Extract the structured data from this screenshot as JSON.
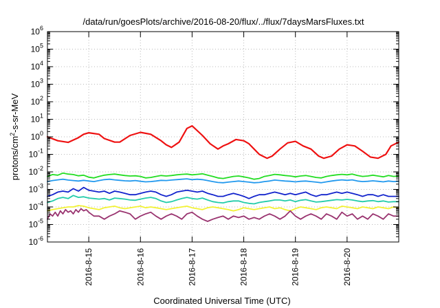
{
  "chart_data": {
    "type": "line",
    "title": "/data/run/goesPlots/archive/2016-08-20/flux/../flux/7daysMarsFluxes.txt",
    "xlabel": "Coordinated Universal Time (UTC)",
    "ylabel": {
      "base": "protons/cm",
      "sup": "2",
      "rest": "-s-sr-MeV"
    },
    "x_domain_days": [
      14.2,
      21.0
    ],
    "x_ticks": [
      {
        "day": 15,
        "label": "2016-8-15"
      },
      {
        "day": 16,
        "label": "2016-8-16"
      },
      {
        "day": 17,
        "label": "2016-8-17"
      },
      {
        "day": 18,
        "label": "2016-8-18"
      },
      {
        "day": 19,
        "label": "2016-8-19"
      },
      {
        "day": 20,
        "label": "2016-8-20"
      }
    ],
    "y_scale": "log",
    "ylim": [
      1e-06,
      1000000.0
    ],
    "y_ticks": [
      {
        "exp": -6,
        "base": "10",
        "sup": "-6"
      },
      {
        "exp": -5,
        "base": "10",
        "sup": "-5"
      },
      {
        "exp": -4,
        "base": "10",
        "sup": "-4"
      },
      {
        "exp": -3,
        "base": "10",
        "sup": "-3"
      },
      {
        "exp": -2,
        "base": "10",
        "sup": "-2"
      },
      {
        "exp": -1,
        "base": "10",
        "sup": "-1"
      },
      {
        "exp": 0,
        "base": "10",
        "sup": "0"
      },
      {
        "exp": 1,
        "base": "10",
        "sup": "1"
      },
      {
        "exp": 2,
        "base": "10",
        "sup": "2"
      },
      {
        "exp": 3,
        "base": "10",
        "sup": "3"
      },
      {
        "exp": 4,
        "base": "10",
        "sup": "4"
      },
      {
        "exp": 5,
        "base": "10",
        "sup": "5"
      },
      {
        "exp": 6,
        "base": "10",
        "sup": "6"
      }
    ],
    "grid": true,
    "series": [
      {
        "color": "#ee1111",
        "width": 2.2,
        "x": [
          14.2,
          14.4,
          14.6,
          14.8,
          14.9,
          15.0,
          15.2,
          15.3,
          15.5,
          15.6,
          15.8,
          16.0,
          16.2,
          16.4,
          16.5,
          16.6,
          16.75,
          16.9,
          17.0,
          17.2,
          17.35,
          17.5,
          17.6,
          17.7,
          17.85,
          18.0,
          18.1,
          18.2,
          18.3,
          18.45,
          18.55,
          18.7,
          18.85,
          19.0,
          19.15,
          19.3,
          19.45,
          19.55,
          19.7,
          19.85,
          20.0,
          20.15,
          20.3,
          20.45,
          20.6,
          20.75,
          20.85,
          21.0
        ],
        "y": [
          1.0,
          0.6,
          0.48,
          0.9,
          1.4,
          1.7,
          1.4,
          0.8,
          0.5,
          0.5,
          1.2,
          1.8,
          1.4,
          0.6,
          0.35,
          0.25,
          0.5,
          3.0,
          4.2,
          1.2,
          0.4,
          0.2,
          0.3,
          0.4,
          0.7,
          0.6,
          0.4,
          0.2,
          0.1,
          0.06,
          0.08,
          0.2,
          0.45,
          0.55,
          0.3,
          0.2,
          0.08,
          0.06,
          0.08,
          0.2,
          0.35,
          0.3,
          0.15,
          0.07,
          0.06,
          0.1,
          0.3,
          0.5
        ]
      },
      {
        "color": "#22dd22",
        "width": 1.8,
        "x": [
          14.2,
          14.3,
          14.4,
          14.5,
          14.6,
          14.7,
          14.8,
          14.9,
          15.0,
          15.1,
          15.2,
          15.3,
          15.4,
          15.5,
          15.6,
          15.7,
          15.8,
          15.9,
          16.0,
          16.1,
          16.2,
          16.3,
          16.4,
          16.5,
          16.6,
          16.7,
          16.8,
          16.9,
          17.0,
          17.1,
          17.2,
          17.3,
          17.4,
          17.5,
          17.6,
          17.7,
          17.8,
          17.9,
          18.0,
          18.1,
          18.2,
          18.3,
          18.4,
          18.5,
          18.6,
          18.7,
          18.8,
          18.9,
          19.0,
          19.1,
          19.2,
          19.3,
          19.4,
          19.5,
          19.6,
          19.7,
          19.8,
          19.9,
          20.0,
          20.1,
          20.2,
          20.3,
          20.4,
          20.5,
          20.6,
          20.7,
          20.8,
          20.9,
          21.0
        ],
        "y": [
          0.0055,
          0.007,
          0.0065,
          0.0085,
          0.0075,
          0.007,
          0.006,
          0.0065,
          0.005,
          0.0045,
          0.0055,
          0.0065,
          0.007,
          0.0075,
          0.0068,
          0.0062,
          0.0058,
          0.006,
          0.0055,
          0.0045,
          0.0048,
          0.0055,
          0.0062,
          0.0058,
          0.0062,
          0.0068,
          0.0072,
          0.0075,
          0.0068,
          0.0072,
          0.0078,
          0.0065,
          0.0055,
          0.0045,
          0.0042,
          0.0048,
          0.0055,
          0.0058,
          0.0052,
          0.0045,
          0.0038,
          0.0042,
          0.0055,
          0.0062,
          0.0072,
          0.0068,
          0.0062,
          0.0058,
          0.0052,
          0.0058,
          0.0062,
          0.0055,
          0.0048,
          0.0045,
          0.0055,
          0.0062,
          0.0068,
          0.0072,
          0.0068,
          0.0075,
          0.0062,
          0.0055,
          0.0058,
          0.0065,
          0.0058,
          0.0052,
          0.0062,
          0.0055,
          0.0058
        ]
      },
      {
        "color": "#2299ee",
        "width": 1.8,
        "x": [
          14.2,
          14.3,
          14.4,
          14.5,
          14.6,
          14.7,
          14.8,
          14.9,
          15.0,
          15.1,
          15.2,
          15.3,
          15.4,
          15.5,
          15.6,
          15.7,
          15.8,
          15.9,
          16.0,
          16.1,
          16.2,
          16.3,
          16.4,
          16.5,
          16.6,
          16.7,
          16.8,
          16.9,
          17.0,
          17.1,
          17.2,
          17.3,
          17.4,
          17.5,
          17.6,
          17.7,
          17.8,
          17.9,
          18.0,
          18.1,
          18.2,
          18.3,
          18.4,
          18.5,
          18.6,
          18.7,
          18.8,
          18.9,
          19.0,
          19.1,
          19.2,
          19.3,
          19.4,
          19.5,
          19.6,
          19.7,
          19.8,
          19.9,
          20.0,
          20.1,
          20.2,
          20.3,
          20.4,
          20.5,
          20.6,
          20.7,
          20.8,
          20.9,
          21.0
        ],
        "y": [
          0.0028,
          0.0032,
          0.0035,
          0.0038,
          0.0034,
          0.0032,
          0.003,
          0.0033,
          0.003,
          0.0028,
          0.0032,
          0.0036,
          0.0038,
          0.0035,
          0.0033,
          0.0031,
          0.003,
          0.0032,
          0.0029,
          0.0027,
          0.0028,
          0.003,
          0.0033,
          0.0032,
          0.0034,
          0.0036,
          0.0038,
          0.004,
          0.0036,
          0.0038,
          0.0036,
          0.0032,
          0.0028,
          0.0025,
          0.0024,
          0.0026,
          0.0028,
          0.003,
          0.0028,
          0.0026,
          0.0024,
          0.0025,
          0.0028,
          0.003,
          0.0034,
          0.0032,
          0.003,
          0.0029,
          0.0027,
          0.0029,
          0.003,
          0.0028,
          0.0026,
          0.0024,
          0.0027,
          0.003,
          0.0033,
          0.0035,
          0.0033,
          0.0035,
          0.003,
          0.0028,
          0.0029,
          0.0031,
          0.0029,
          0.0027,
          0.003,
          0.0028,
          0.0029
        ]
      },
      {
        "color": "#1122cc",
        "width": 1.8,
        "x": [
          14.2,
          14.3,
          14.4,
          14.5,
          14.6,
          14.7,
          14.8,
          14.9,
          15.0,
          15.1,
          15.2,
          15.3,
          15.4,
          15.5,
          15.6,
          15.7,
          15.8,
          15.9,
          16.0,
          16.1,
          16.2,
          16.3,
          16.4,
          16.5,
          16.6,
          16.7,
          16.8,
          16.9,
          17.0,
          17.1,
          17.2,
          17.3,
          17.4,
          17.5,
          17.6,
          17.7,
          17.8,
          17.9,
          18.0,
          18.1,
          18.2,
          18.3,
          18.4,
          18.5,
          18.6,
          18.7,
          18.8,
          18.9,
          19.0,
          19.1,
          19.2,
          19.3,
          19.4,
          19.5,
          19.6,
          19.7,
          19.8,
          19.9,
          20.0,
          20.1,
          20.2,
          20.3,
          20.4,
          20.5,
          20.6,
          20.7,
          20.8,
          20.9,
          21.0
        ],
        "y": [
          0.0004,
          0.0005,
          0.0007,
          0.0008,
          0.0007,
          0.0011,
          0.0008,
          0.0013,
          0.0009,
          0.0008,
          0.0007,
          0.0008,
          0.0006,
          0.0008,
          0.0007,
          0.0006,
          0.0005,
          0.0005,
          0.0006,
          0.0007,
          0.0008,
          0.0007,
          0.0005,
          0.0004,
          0.0005,
          0.0007,
          0.0008,
          0.0009,
          0.0008,
          0.0007,
          0.0008,
          0.0006,
          0.0005,
          0.0004,
          0.0004,
          0.0005,
          0.0006,
          0.0005,
          0.0004,
          0.0003,
          0.0004,
          0.0005,
          0.0005,
          0.0006,
          0.0007,
          0.0006,
          0.0005,
          0.0006,
          0.0005,
          0.0006,
          0.0007,
          0.0005,
          0.0004,
          0.0005,
          0.0005,
          0.0006,
          0.0007,
          0.0006,
          0.0007,
          0.0006,
          0.0005,
          0.0004,
          0.0005,
          0.0005,
          0.0004,
          0.0005,
          0.0004,
          0.0004,
          0.0004
        ]
      },
      {
        "color": "#22ccaa",
        "width": 1.8,
        "x": [
          14.2,
          14.3,
          14.4,
          14.5,
          14.6,
          14.7,
          14.8,
          14.9,
          15.0,
          15.1,
          15.2,
          15.3,
          15.4,
          15.5,
          15.6,
          15.7,
          15.8,
          15.9,
          16.0,
          16.1,
          16.2,
          16.3,
          16.4,
          16.5,
          16.6,
          16.7,
          16.8,
          16.9,
          17.0,
          17.1,
          17.2,
          17.3,
          17.4,
          17.5,
          17.6,
          17.7,
          17.8,
          17.9,
          18.0,
          18.1,
          18.2,
          18.3,
          18.4,
          18.5,
          18.6,
          18.7,
          18.8,
          18.9,
          19.0,
          19.1,
          19.2,
          19.3,
          19.4,
          19.5,
          19.6,
          19.7,
          19.8,
          19.9,
          20.0,
          20.1,
          20.2,
          20.3,
          20.4,
          20.5,
          20.6,
          20.7,
          20.8,
          20.9,
          21.0
        ],
        "y": [
          0.00018,
          0.00022,
          0.0003,
          0.00035,
          0.0003,
          0.00045,
          0.00035,
          0.00038,
          0.00032,
          0.0003,
          0.00028,
          0.0003,
          0.00025,
          0.00032,
          0.0003,
          0.00028,
          0.00025,
          0.00024,
          0.00028,
          0.00032,
          0.00035,
          0.0003,
          0.00022,
          0.00018,
          0.0002,
          0.00025,
          0.0003,
          0.00035,
          0.0003,
          0.00028,
          0.00032,
          0.00025,
          0.0002,
          0.00018,
          0.00017,
          0.0002,
          0.00022,
          0.00022,
          0.00018,
          0.00016,
          0.00015,
          0.00018,
          0.0002,
          0.00022,
          0.00025,
          0.00025,
          0.00022,
          0.00025,
          0.0002,
          0.00024,
          0.00026,
          0.00022,
          0.00019,
          0.0002,
          0.00022,
          0.00024,
          0.00026,
          0.00025,
          0.00027,
          0.00025,
          0.00022,
          0.0002,
          0.00022,
          0.00023,
          0.0002,
          0.00022,
          0.00019,
          0.0002,
          0.0002
        ]
      },
      {
        "color": "#f2f233",
        "width": 1.8,
        "x": [
          14.2,
          14.3,
          14.4,
          14.5,
          14.6,
          14.7,
          14.8,
          14.9,
          15.0,
          15.1,
          15.2,
          15.3,
          15.4,
          15.5,
          15.6,
          15.7,
          15.8,
          15.9,
          16.0,
          16.1,
          16.2,
          16.3,
          16.4,
          16.5,
          16.6,
          16.7,
          16.8,
          16.9,
          17.0,
          17.1,
          17.2,
          17.3,
          17.4,
          17.5,
          17.6,
          17.7,
          17.8,
          17.9,
          18.0,
          18.1,
          18.2,
          18.3,
          18.4,
          18.5,
          18.6,
          18.7,
          18.8,
          18.9,
          19.0,
          19.1,
          19.2,
          19.3,
          19.4,
          19.5,
          19.6,
          19.7,
          19.8,
          19.9,
          20.0,
          20.1,
          20.2,
          20.3,
          20.4,
          20.5,
          20.6,
          20.7,
          20.8,
          20.9,
          21.0
        ],
        "y": [
          6e-05,
          7e-05,
          8e-05,
          9e-05,
          0.0001,
          0.0001,
          0.00012,
          0.00011,
          9e-05,
          8e-05,
          7e-05,
          9e-05,
          0.0001,
          0.00011,
          9e-05,
          8e-05,
          9e-05,
          0.0001,
          0.00011,
          9e-05,
          0.0001,
          9e-05,
          8e-05,
          7e-05,
          8e-05,
          9e-05,
          0.0001,
          0.00011,
          9e-05,
          8e-05,
          7e-05,
          9e-05,
          0.0001,
          9e-05,
          8e-05,
          7e-05,
          6e-05,
          7e-05,
          9e-05,
          8e-05,
          7e-05,
          8e-05,
          9e-05,
          0.0001,
          8e-05,
          9e-05,
          7e-05,
          6e-05,
          8e-05,
          0.0001,
          9e-05,
          8e-05,
          7e-05,
          9e-05,
          0.0001,
          9e-05,
          8e-05,
          0.00011,
          0.0001,
          9e-05,
          8e-05,
          0.0001,
          9e-05,
          8e-05,
          0.0001,
          9e-05,
          8e-05,
          0.0001,
          9e-05
        ]
      },
      {
        "color": "#99336f",
        "width": 1.8,
        "x": [
          14.2,
          14.25,
          14.3,
          14.35,
          14.4,
          14.45,
          14.5,
          14.55,
          14.6,
          14.65,
          14.7,
          14.75,
          14.8,
          14.85,
          14.9,
          14.95,
          15.0,
          15.1,
          15.2,
          15.3,
          15.4,
          15.5,
          15.6,
          15.7,
          15.8,
          15.9,
          16.0,
          16.1,
          16.2,
          16.3,
          16.4,
          16.5,
          16.6,
          16.7,
          16.8,
          16.9,
          17.0,
          17.1,
          17.2,
          17.3,
          17.4,
          17.5,
          17.6,
          17.7,
          17.8,
          17.9,
          18.0,
          18.1,
          18.2,
          18.3,
          18.4,
          18.5,
          18.6,
          18.7,
          18.8,
          18.9,
          19.0,
          19.1,
          19.2,
          19.3,
          19.4,
          19.5,
          19.6,
          19.7,
          19.8,
          19.9,
          20.0,
          20.1,
          20.2,
          20.3,
          20.4,
          20.5,
          20.6,
          20.7,
          20.8,
          20.9,
          21.0
        ],
        "y": [
          2e-05,
          4e-05,
          3e-05,
          5e-05,
          3e-05,
          6e-05,
          4e-05,
          7e-05,
          5e-05,
          6e-05,
          4e-05,
          7e-05,
          5e-05,
          8e-05,
          6e-05,
          7e-05,
          5e-05,
          3e-05,
          3e-05,
          2e-05,
          3e-05,
          4e-05,
          6e-05,
          5e-05,
          4e-05,
          2e-05,
          3e-05,
          4e-05,
          5e-05,
          3e-05,
          2e-05,
          3e-05,
          4e-05,
          3e-05,
          2e-05,
          4e-05,
          5e-05,
          3e-05,
          2e-05,
          1.5e-05,
          2e-05,
          2.5e-05,
          3e-05,
          2e-05,
          3e-05,
          2.5e-05,
          3e-05,
          2e-05,
          2.5e-05,
          2e-05,
          3e-05,
          4e-05,
          3e-05,
          2e-05,
          3e-05,
          6e-05,
          3e-05,
          2e-05,
          3e-05,
          4e-05,
          3e-05,
          2e-05,
          4e-05,
          3e-05,
          2e-05,
          5e-05,
          3e-05,
          4e-05,
          2e-05,
          3e-05,
          2e-05,
          4e-05,
          3e-05,
          2e-05,
          4e-05,
          3e-05,
          3e-05
        ]
      }
    ]
  }
}
